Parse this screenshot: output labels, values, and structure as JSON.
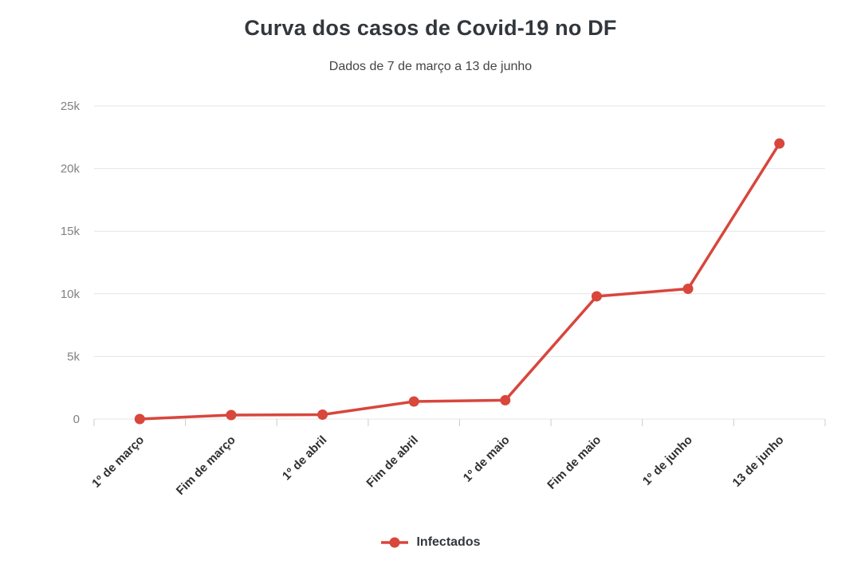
{
  "chart_data": {
    "type": "line",
    "title": "Curva dos casos de Covid-19 no DF",
    "subtitle": "Dados de 7 de março a 13 de junho",
    "categories": [
      "1º de março",
      "Fim de março",
      "1º de abril",
      "Fim de abril",
      "1º de maio",
      "Fim de maio",
      "1º de junho",
      "13 de junho"
    ],
    "series": [
      {
        "name": "Infectados",
        "color": "#d8463c",
        "values": [
          1,
          320,
          350,
          1400,
          1500,
          9800,
          10400,
          22000
        ]
      }
    ],
    "y_ticks": [
      {
        "value": 0,
        "label": "0"
      },
      {
        "value": 5000,
        "label": "5k"
      },
      {
        "value": 10000,
        "label": "10k"
      },
      {
        "value": 15000,
        "label": "15k"
      },
      {
        "value": 20000,
        "label": "20k"
      },
      {
        "value": 25000,
        "label": "25k"
      }
    ],
    "ylim": [
      0,
      25000
    ],
    "xlabel": "",
    "ylabel": "",
    "grid": true,
    "legend_position": "bottom"
  },
  "colors": {
    "series_red": "#d8463c",
    "gridline": "#e4e4e4",
    "axis_tick": "#cccccc",
    "title_text": "#32373c",
    "y_label_text": "#818181",
    "x_label_text": "#303030",
    "background": "#ffffff"
  }
}
